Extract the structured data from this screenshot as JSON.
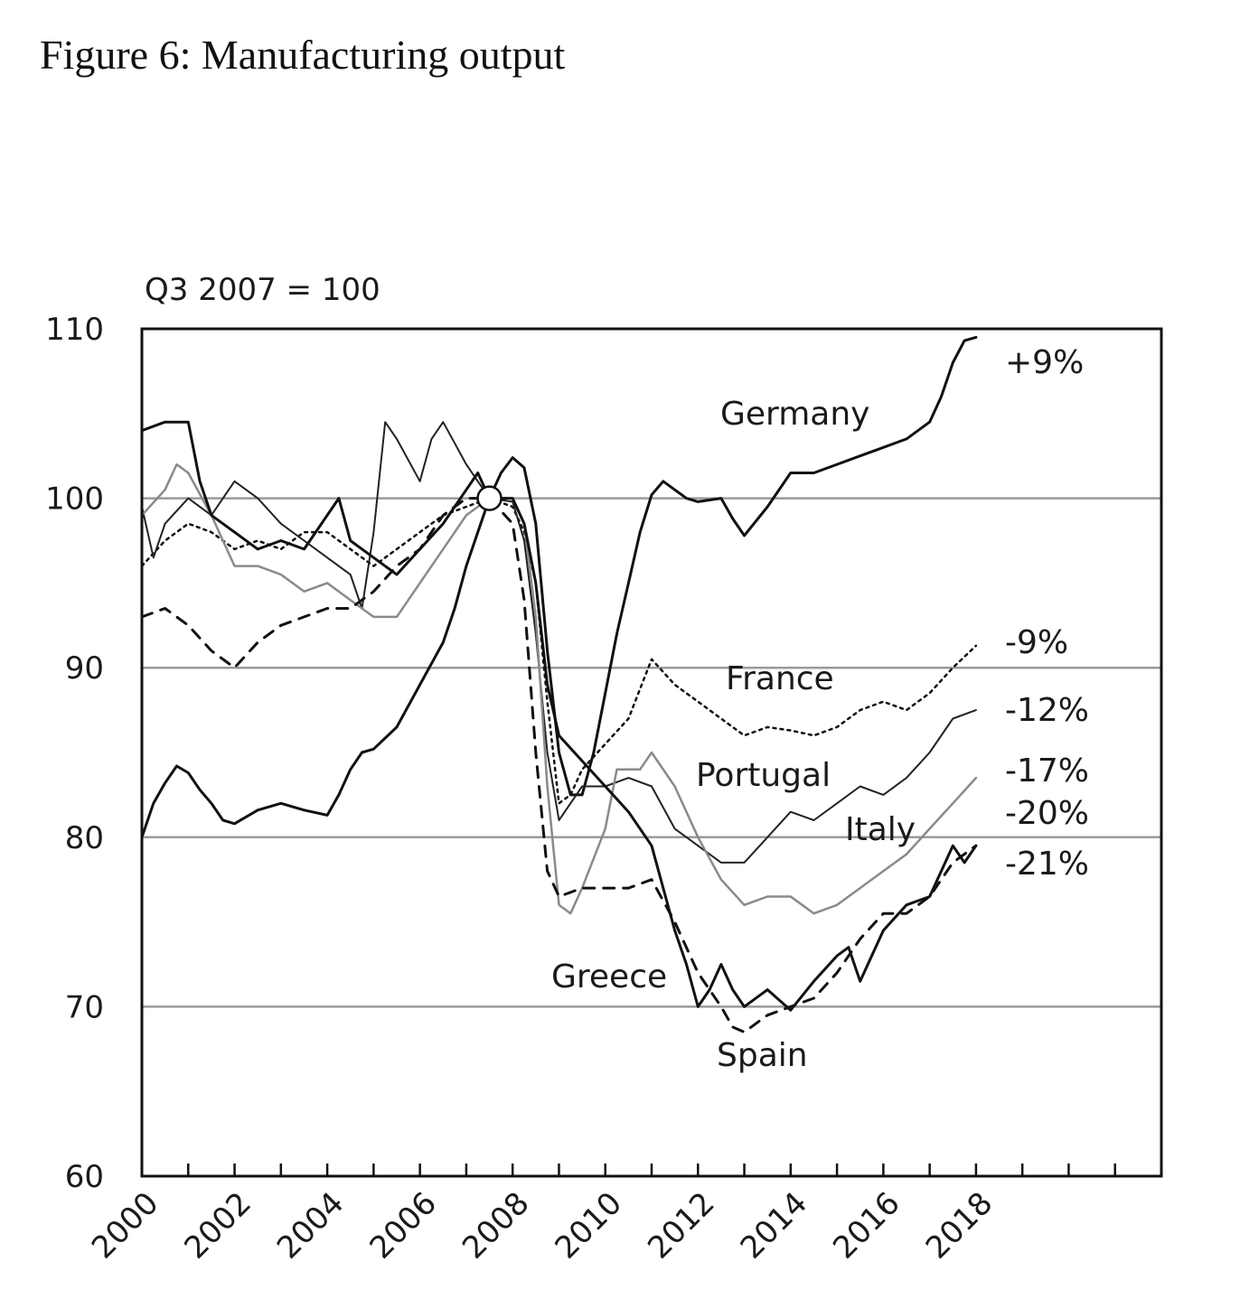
{
  "figure_title": "Figure 6: Manufacturing output",
  "chart_data": {
    "type": "line",
    "title": "",
    "unit_note": "Q3 2007 = 100",
    "xlabel": "",
    "ylabel": "",
    "xlim": [
      2000,
      2022
    ],
    "ylim": [
      60,
      110
    ],
    "y_ticks": [
      60,
      70,
      80,
      90,
      100,
      110
    ],
    "x_ticks": [
      2000,
      2002,
      2004,
      2006,
      2008,
      2010,
      2012,
      2014,
      2016,
      2018
    ],
    "gridlines_y": [
      70,
      80,
      90,
      100
    ],
    "grid": "horizontal",
    "legend": "none (series labelled directly on the chart)",
    "baseline_marker": {
      "x": 2007.5,
      "y": 100
    },
    "series": [
      {
        "name": "Germany",
        "end_label": "+9%",
        "color": "#111111",
        "style": "solid-thick",
        "points": [
          [
            2000.0,
            80
          ],
          [
            2000.25,
            82
          ],
          [
            2000.5,
            83.2
          ],
          [
            2000.75,
            84.2
          ],
          [
            2001.0,
            83.8
          ],
          [
            2001.25,
            82.8
          ],
          [
            2001.5,
            82.0
          ],
          [
            2001.75,
            81.0
          ],
          [
            2002.0,
            80.8
          ],
          [
            2002.5,
            81.6
          ],
          [
            2003.0,
            82.0
          ],
          [
            2003.5,
            81.6
          ],
          [
            2004.0,
            81.3
          ],
          [
            2004.25,
            82.5
          ],
          [
            2004.5,
            84.0
          ],
          [
            2004.75,
            85.0
          ],
          [
            2005.0,
            85.2
          ],
          [
            2005.5,
            86.5
          ],
          [
            2006.0,
            89.0
          ],
          [
            2006.5,
            91.5
          ],
          [
            2006.75,
            93.5
          ],
          [
            2007.0,
            96.0
          ],
          [
            2007.25,
            98.0
          ],
          [
            2007.5,
            100.0
          ],
          [
            2007.75,
            101.5
          ],
          [
            2008.0,
            102.4
          ],
          [
            2008.25,
            101.8
          ],
          [
            2008.5,
            98.5
          ],
          [
            2008.75,
            91.0
          ],
          [
            2009.0,
            85.0
          ],
          [
            2009.25,
            82.5
          ],
          [
            2009.5,
            82.5
          ],
          [
            2009.75,
            85.0
          ],
          [
            2010.0,
            88.5
          ],
          [
            2010.25,
            92.0
          ],
          [
            2010.5,
            95.0
          ],
          [
            2010.75,
            98.0
          ],
          [
            2011.0,
            100.2
          ],
          [
            2011.25,
            101.0
          ],
          [
            2011.5,
            100.5
          ],
          [
            2011.75,
            100.0
          ],
          [
            2012.0,
            99.8
          ],
          [
            2012.5,
            100.0
          ],
          [
            2012.75,
            98.8
          ],
          [
            2013.0,
            97.8
          ],
          [
            2013.5,
            99.5
          ],
          [
            2014.0,
            101.5
          ],
          [
            2014.5,
            101.5
          ],
          [
            2015.0,
            102.0
          ],
          [
            2015.5,
            102.5
          ],
          [
            2016.0,
            103.0
          ],
          [
            2016.5,
            103.5
          ],
          [
            2017.0,
            104.5
          ],
          [
            2017.25,
            106.0
          ],
          [
            2017.5,
            108.0
          ],
          [
            2017.75,
            109.3
          ],
          [
            2018.0,
            109.5
          ]
        ]
      },
      {
        "name": "France",
        "end_label": "-9%",
        "color": "#111111",
        "style": "dotted",
        "points": [
          [
            2000.0,
            96.0
          ],
          [
            2000.5,
            97.5
          ],
          [
            2001.0,
            98.5
          ],
          [
            2001.5,
            98.0
          ],
          [
            2002.0,
            97.0
          ],
          [
            2002.5,
            97.5
          ],
          [
            2003.0,
            97.0
          ],
          [
            2003.5,
            98.0
          ],
          [
            2004.0,
            98.0
          ],
          [
            2004.5,
            97.0
          ],
          [
            2005.0,
            96.0
          ],
          [
            2005.5,
            97.0
          ],
          [
            2006.0,
            98.0
          ],
          [
            2006.5,
            99.0
          ],
          [
            2007.0,
            99.5
          ],
          [
            2007.5,
            100.0
          ],
          [
            2008.0,
            99.5
          ],
          [
            2008.25,
            98.0
          ],
          [
            2008.5,
            95.0
          ],
          [
            2008.75,
            88.0
          ],
          [
            2009.0,
            82.0
          ],
          [
            2009.25,
            82.5
          ],
          [
            2009.5,
            84.0
          ],
          [
            2010.0,
            85.5
          ],
          [
            2010.5,
            87.0
          ],
          [
            2011.0,
            90.5
          ],
          [
            2011.5,
            89.0
          ],
          [
            2012.0,
            88.0
          ],
          [
            2012.5,
            87.0
          ],
          [
            2013.0,
            86.0
          ],
          [
            2013.5,
            86.5
          ],
          [
            2014.0,
            86.3
          ],
          [
            2014.5,
            86.0
          ],
          [
            2015.0,
            86.5
          ],
          [
            2015.5,
            87.5
          ],
          [
            2016.0,
            88.0
          ],
          [
            2016.5,
            87.5
          ],
          [
            2017.0,
            88.5
          ],
          [
            2017.5,
            90.0
          ],
          [
            2018.0,
            91.3
          ]
        ]
      },
      {
        "name": "Portugal",
        "end_label": "-12%",
        "color": "#222222",
        "style": "solid-thin",
        "points": [
          [
            2000.0,
            99.5
          ],
          [
            2000.25,
            96.5
          ],
          [
            2000.5,
            98.5
          ],
          [
            2001.0,
            100.0
          ],
          [
            2001.5,
            99.0
          ],
          [
            2002.0,
            101.0
          ],
          [
            2002.5,
            100.0
          ],
          [
            2003.0,
            98.5
          ],
          [
            2003.5,
            97.5
          ],
          [
            2004.0,
            96.5
          ],
          [
            2004.5,
            95.5
          ],
          [
            2004.75,
            93.5
          ],
          [
            2005.0,
            98.0
          ],
          [
            2005.25,
            104.5
          ],
          [
            2005.5,
            103.5
          ],
          [
            2006.0,
            101.0
          ],
          [
            2006.25,
            103.5
          ],
          [
            2006.5,
            104.5
          ],
          [
            2007.0,
            102.0
          ],
          [
            2007.5,
            100.0
          ],
          [
            2008.0,
            99.8
          ],
          [
            2008.25,
            97.5
          ],
          [
            2008.5,
            92.0
          ],
          [
            2008.75,
            85.0
          ],
          [
            2009.0,
            81.0
          ],
          [
            2009.5,
            83.0
          ],
          [
            2010.0,
            83.0
          ],
          [
            2010.5,
            83.5
          ],
          [
            2011.0,
            83.0
          ],
          [
            2011.5,
            80.5
          ],
          [
            2012.0,
            79.5
          ],
          [
            2012.5,
            78.5
          ],
          [
            2013.0,
            78.5
          ],
          [
            2013.5,
            80.0
          ],
          [
            2014.0,
            81.5
          ],
          [
            2014.5,
            81.0
          ],
          [
            2015.0,
            82.0
          ],
          [
            2015.5,
            83.0
          ],
          [
            2016.0,
            82.5
          ],
          [
            2016.5,
            83.5
          ],
          [
            2017.0,
            85.0
          ],
          [
            2017.5,
            87.0
          ],
          [
            2018.0,
            87.5
          ]
        ]
      },
      {
        "name": "Italy",
        "end_label": "-17%",
        "color": "#8a8a8a",
        "style": "solid-grey",
        "points": [
          [
            2000.0,
            99.0
          ],
          [
            2000.5,
            100.5
          ],
          [
            2000.75,
            102.0
          ],
          [
            2001.0,
            101.5
          ],
          [
            2001.5,
            99.0
          ],
          [
            2002.0,
            96.0
          ],
          [
            2002.5,
            96.0
          ],
          [
            2003.0,
            95.5
          ],
          [
            2003.5,
            94.5
          ],
          [
            2004.0,
            95.0
          ],
          [
            2004.5,
            94.0
          ],
          [
            2005.0,
            93.0
          ],
          [
            2005.5,
            93.0
          ],
          [
            2006.0,
            95.0
          ],
          [
            2006.5,
            97.0
          ],
          [
            2007.0,
            99.0
          ],
          [
            2007.5,
            100.0
          ],
          [
            2008.0,
            100.0
          ],
          [
            2008.25,
            98.5
          ],
          [
            2008.5,
            93.0
          ],
          [
            2008.75,
            83.0
          ],
          [
            2009.0,
            76.0
          ],
          [
            2009.25,
            75.5
          ],
          [
            2009.5,
            77.0
          ],
          [
            2010.0,
            80.5
          ],
          [
            2010.25,
            84.0
          ],
          [
            2010.5,
            84.0
          ],
          [
            2010.75,
            84.0
          ],
          [
            2011.0,
            85.0
          ],
          [
            2011.5,
            83.0
          ],
          [
            2012.0,
            80.0
          ],
          [
            2012.5,
            77.5
          ],
          [
            2013.0,
            76.0
          ],
          [
            2013.5,
            76.5
          ],
          [
            2014.0,
            76.5
          ],
          [
            2014.5,
            75.5
          ],
          [
            2015.0,
            76.0
          ],
          [
            2015.5,
            77.0
          ],
          [
            2016.0,
            78.0
          ],
          [
            2016.5,
            79.0
          ],
          [
            2017.0,
            80.5
          ],
          [
            2017.5,
            82.0
          ],
          [
            2018.0,
            83.5
          ]
        ]
      },
      {
        "name": "Spain",
        "end_label": "-20%",
        "color": "#111111",
        "style": "dashed",
        "points": [
          [
            2000.0,
            93.0
          ],
          [
            2000.5,
            93.5
          ],
          [
            2001.0,
            92.5
          ],
          [
            2001.5,
            91.0
          ],
          [
            2002.0,
            90.0
          ],
          [
            2002.5,
            91.5
          ],
          [
            2003.0,
            92.5
          ],
          [
            2003.5,
            93.0
          ],
          [
            2004.0,
            93.5
          ],
          [
            2004.5,
            93.5
          ],
          [
            2005.0,
            94.5
          ],
          [
            2005.5,
            96.0
          ],
          [
            2006.0,
            97.0
          ],
          [
            2006.5,
            99.0
          ],
          [
            2007.0,
            100.0
          ],
          [
            2007.5,
            100.0
          ],
          [
            2008.0,
            98.5
          ],
          [
            2008.25,
            94.0
          ],
          [
            2008.5,
            85.0
          ],
          [
            2008.75,
            78.0
          ],
          [
            2009.0,
            76.5
          ],
          [
            2009.5,
            77.0
          ],
          [
            2010.0,
            77.0
          ],
          [
            2010.5,
            77.0
          ],
          [
            2011.0,
            77.5
          ],
          [
            2011.5,
            75.0
          ],
          [
            2012.0,
            72.0
          ],
          [
            2012.5,
            70.0
          ],
          [
            2012.75,
            68.8
          ],
          [
            2013.0,
            68.5
          ],
          [
            2013.5,
            69.5
          ],
          [
            2014.0,
            70.0
          ],
          [
            2014.5,
            70.5
          ],
          [
            2015.0,
            72.0
          ],
          [
            2015.5,
            74.0
          ],
          [
            2016.0,
            75.5
          ],
          [
            2016.5,
            75.5
          ],
          [
            2017.0,
            76.5
          ],
          [
            2017.5,
            78.5
          ],
          [
            2018.0,
            79.5
          ]
        ]
      },
      {
        "name": "Greece",
        "end_label": "-21%",
        "color": "#111111",
        "style": "solid-thick",
        "points": [
          [
            2000.0,
            104.0
          ],
          [
            2000.5,
            104.5
          ],
          [
            2001.0,
            104.5
          ],
          [
            2001.25,
            101.0
          ],
          [
            2001.5,
            99.0
          ],
          [
            2002.0,
            98.0
          ],
          [
            2002.5,
            97.0
          ],
          [
            2003.0,
            97.5
          ],
          [
            2003.5,
            97.0
          ],
          [
            2004.0,
            99.0
          ],
          [
            2004.25,
            100.0
          ],
          [
            2004.5,
            97.5
          ],
          [
            2005.0,
            96.5
          ],
          [
            2005.5,
            95.5
          ],
          [
            2006.0,
            97.0
          ],
          [
            2006.5,
            98.5
          ],
          [
            2007.0,
            100.5
          ],
          [
            2007.25,
            101.5
          ],
          [
            2007.5,
            100.0
          ],
          [
            2008.0,
            100.0
          ],
          [
            2008.25,
            98.5
          ],
          [
            2008.5,
            95.0
          ],
          [
            2008.75,
            89.0
          ],
          [
            2009.0,
            86.0
          ],
          [
            2009.5,
            84.5
          ],
          [
            2010.0,
            83.0
          ],
          [
            2010.5,
            81.5
          ],
          [
            2011.0,
            79.5
          ],
          [
            2011.25,
            77.0
          ],
          [
            2011.5,
            74.5
          ],
          [
            2011.75,
            72.5
          ],
          [
            2012.0,
            70.0
          ],
          [
            2012.25,
            71.0
          ],
          [
            2012.5,
            72.5
          ],
          [
            2012.75,
            71.0
          ],
          [
            2013.0,
            70.0
          ],
          [
            2013.5,
            71.0
          ],
          [
            2014.0,
            69.8
          ],
          [
            2014.5,
            71.5
          ],
          [
            2015.0,
            73.0
          ],
          [
            2015.25,
            73.5
          ],
          [
            2015.5,
            71.5
          ],
          [
            2016.0,
            74.5
          ],
          [
            2016.5,
            76.0
          ],
          [
            2017.0,
            76.5
          ],
          [
            2017.5,
            79.5
          ],
          [
            2017.75,
            78.5
          ],
          [
            2018.0,
            79.5
          ]
        ]
      }
    ]
  }
}
